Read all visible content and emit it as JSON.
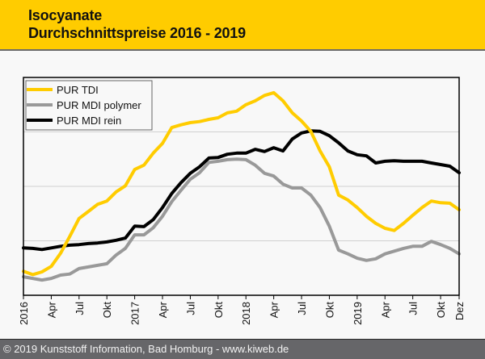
{
  "header": {
    "title_line1": "Isocyanate",
    "title_line2": "Durchschnittspreise 2016 - 2019"
  },
  "footer": {
    "text": "© 2019 Kunststoff Information, Bad Homburg - www.kiweb.de"
  },
  "colors": {
    "header_bg": "#ffcc00",
    "footer_bg": "#666669",
    "tdi": "#ffcc00",
    "mdi_polymer": "#999999",
    "mdi_rein": "#000000",
    "grid": "#d0d0d0"
  },
  "chart_data": {
    "type": "line",
    "title": "Isocyanate Durchschnittspreise 2016 - 2019",
    "xlabel": "",
    "ylabel": "",
    "y_units_note": "No y-axis labels shown; values expressed in gridline units (relative index)",
    "ylim": [
      0,
      4
    ],
    "y_gridlines": [
      1,
      2,
      3
    ],
    "grid": true,
    "legend_position": "top-left",
    "x_range_months": [
      0,
      47
    ],
    "x_ticks": [
      {
        "month": 0,
        "label": "2016"
      },
      {
        "month": 3,
        "label": "Apr"
      },
      {
        "month": 6,
        "label": "Jul"
      },
      {
        "month": 9,
        "label": "Okt"
      },
      {
        "month": 12,
        "label": "2017"
      },
      {
        "month": 15,
        "label": "Apr"
      },
      {
        "month": 18,
        "label": "Jul"
      },
      {
        "month": 21,
        "label": "Okt"
      },
      {
        "month": 24,
        "label": "2018"
      },
      {
        "month": 27,
        "label": "Apr"
      },
      {
        "month": 30,
        "label": "Jul"
      },
      {
        "month": 33,
        "label": "Okt"
      },
      {
        "month": 36,
        "label": "2019"
      },
      {
        "month": 39,
        "label": "Apr"
      },
      {
        "month": 42,
        "label": "Jul"
      },
      {
        "month": 45,
        "label": "Okt"
      },
      {
        "month": 47,
        "label": "Dez"
      }
    ],
    "series": [
      {
        "name": "PUR TDI",
        "color": "#ffcc00",
        "values": [
          0.44,
          0.38,
          0.43,
          0.53,
          0.77,
          1.08,
          1.41,
          1.54,
          1.67,
          1.73,
          1.9,
          2.01,
          2.31,
          2.39,
          2.61,
          2.79,
          3.08,
          3.13,
          3.17,
          3.19,
          3.23,
          3.26,
          3.35,
          3.38,
          3.5,
          3.57,
          3.67,
          3.72,
          3.57,
          3.35,
          3.2,
          3.01,
          2.65,
          2.36,
          1.84,
          1.75,
          1.61,
          1.45,
          1.32,
          1.23,
          1.19,
          1.32,
          1.47,
          1.61,
          1.73,
          1.7,
          1.69,
          1.57
        ]
      },
      {
        "name": "PUR MDI polymer",
        "color": "#999999",
        "values": [
          0.34,
          0.31,
          0.28,
          0.31,
          0.37,
          0.39,
          0.49,
          0.52,
          0.55,
          0.58,
          0.74,
          0.86,
          1.11,
          1.11,
          1.24,
          1.45,
          1.72,
          1.93,
          2.13,
          2.25,
          2.44,
          2.46,
          2.49,
          2.5,
          2.49,
          2.39,
          2.24,
          2.19,
          2.04,
          1.97,
          1.97,
          1.84,
          1.61,
          1.27,
          0.83,
          0.76,
          0.68,
          0.64,
          0.67,
          0.76,
          0.81,
          0.86,
          0.9,
          0.9,
          0.99,
          0.93,
          0.86,
          0.76
        ]
      },
      {
        "name": "PUR MDI rein",
        "color": "#000000",
        "values": [
          0.87,
          0.86,
          0.84,
          0.87,
          0.9,
          0.92,
          0.93,
          0.95,
          0.96,
          0.98,
          1.01,
          1.05,
          1.27,
          1.26,
          1.39,
          1.61,
          1.87,
          2.07,
          2.24,
          2.36,
          2.52,
          2.53,
          2.59,
          2.61,
          2.61,
          2.68,
          2.64,
          2.71,
          2.65,
          2.87,
          2.98,
          3.02,
          3.01,
          2.93,
          2.8,
          2.65,
          2.58,
          2.56,
          2.43,
          2.46,
          2.47,
          2.46,
          2.46,
          2.46,
          2.43,
          2.4,
          2.37,
          2.25
        ]
      }
    ]
  }
}
